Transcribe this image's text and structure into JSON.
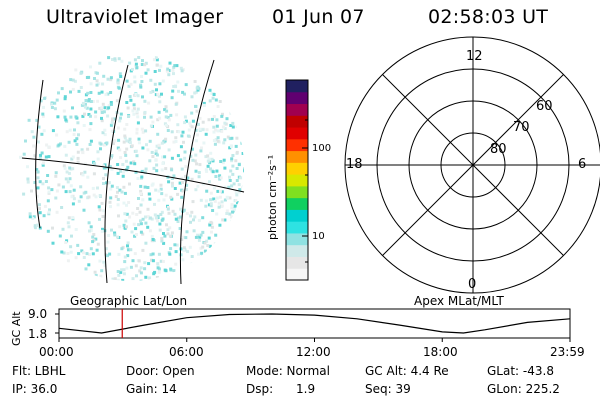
{
  "header": {
    "instrument": "Ultraviolet Imager",
    "date": "01 Jun 07",
    "time": "02:58:03 UT"
  },
  "colorbar": {
    "unit_label": "photon cm⁻²s⁻¹",
    "ticks": [
      "100",
      "10"
    ],
    "colors": [
      "#f6f6f6",
      "#e6e6e6",
      "#cfe9e9",
      "#8fe2e2",
      "#2ee2e2",
      "#00d0d0",
      "#10d060",
      "#80e020",
      "#d8e800",
      "#ffd000",
      "#ff9000",
      "#ff3000",
      "#e00000",
      "#c00000",
      "#a00050",
      "#600070",
      "#202060"
    ]
  },
  "polar_plot": {
    "clock_labels": [
      "12",
      "18",
      "6",
      "0"
    ],
    "lat_labels": [
      "60",
      "70",
      "80"
    ]
  },
  "image_panel": {
    "caption": "Geographic Lat/Lon"
  },
  "orbit_plot": {
    "ylabel": "GC Alt",
    "y_ticks": [
      "9.0",
      "1.8"
    ],
    "caption": "Apex MLat/MLT",
    "x_ticks": [
      "00:00",
      "06:00",
      "12:00",
      "18:00",
      "23:59"
    ],
    "marker_color": "#cc0000"
  },
  "chart_data": {
    "type": "line",
    "title": "",
    "xlabel": "",
    "ylabel": "GC Alt",
    "x": [
      0,
      2,
      4,
      6,
      8,
      10,
      12,
      14,
      16,
      18,
      19,
      20,
      22,
      24
    ],
    "values": [
      3.6,
      1.8,
      4.8,
      7.6,
      8.8,
      9.0,
      8.6,
      7.2,
      4.8,
      2.2,
      1.8,
      3.0,
      5.8,
      7.2
    ],
    "ylim": [
      1.8,
      9.0
    ],
    "xlim": [
      0,
      24
    ],
    "current_time_hours": 2.97
  },
  "status": {
    "row1": [
      "Flt: LBHL",
      "Door: Open",
      "Mode: Normal",
      "GC Alt: 4.4 Re",
      "GLat: -43.8"
    ],
    "row2": [
      "IP: 36.0",
      "Gain: 14",
      "Dsp:      1.9",
      "Seq: 39",
      "GLon: 225.2"
    ]
  }
}
